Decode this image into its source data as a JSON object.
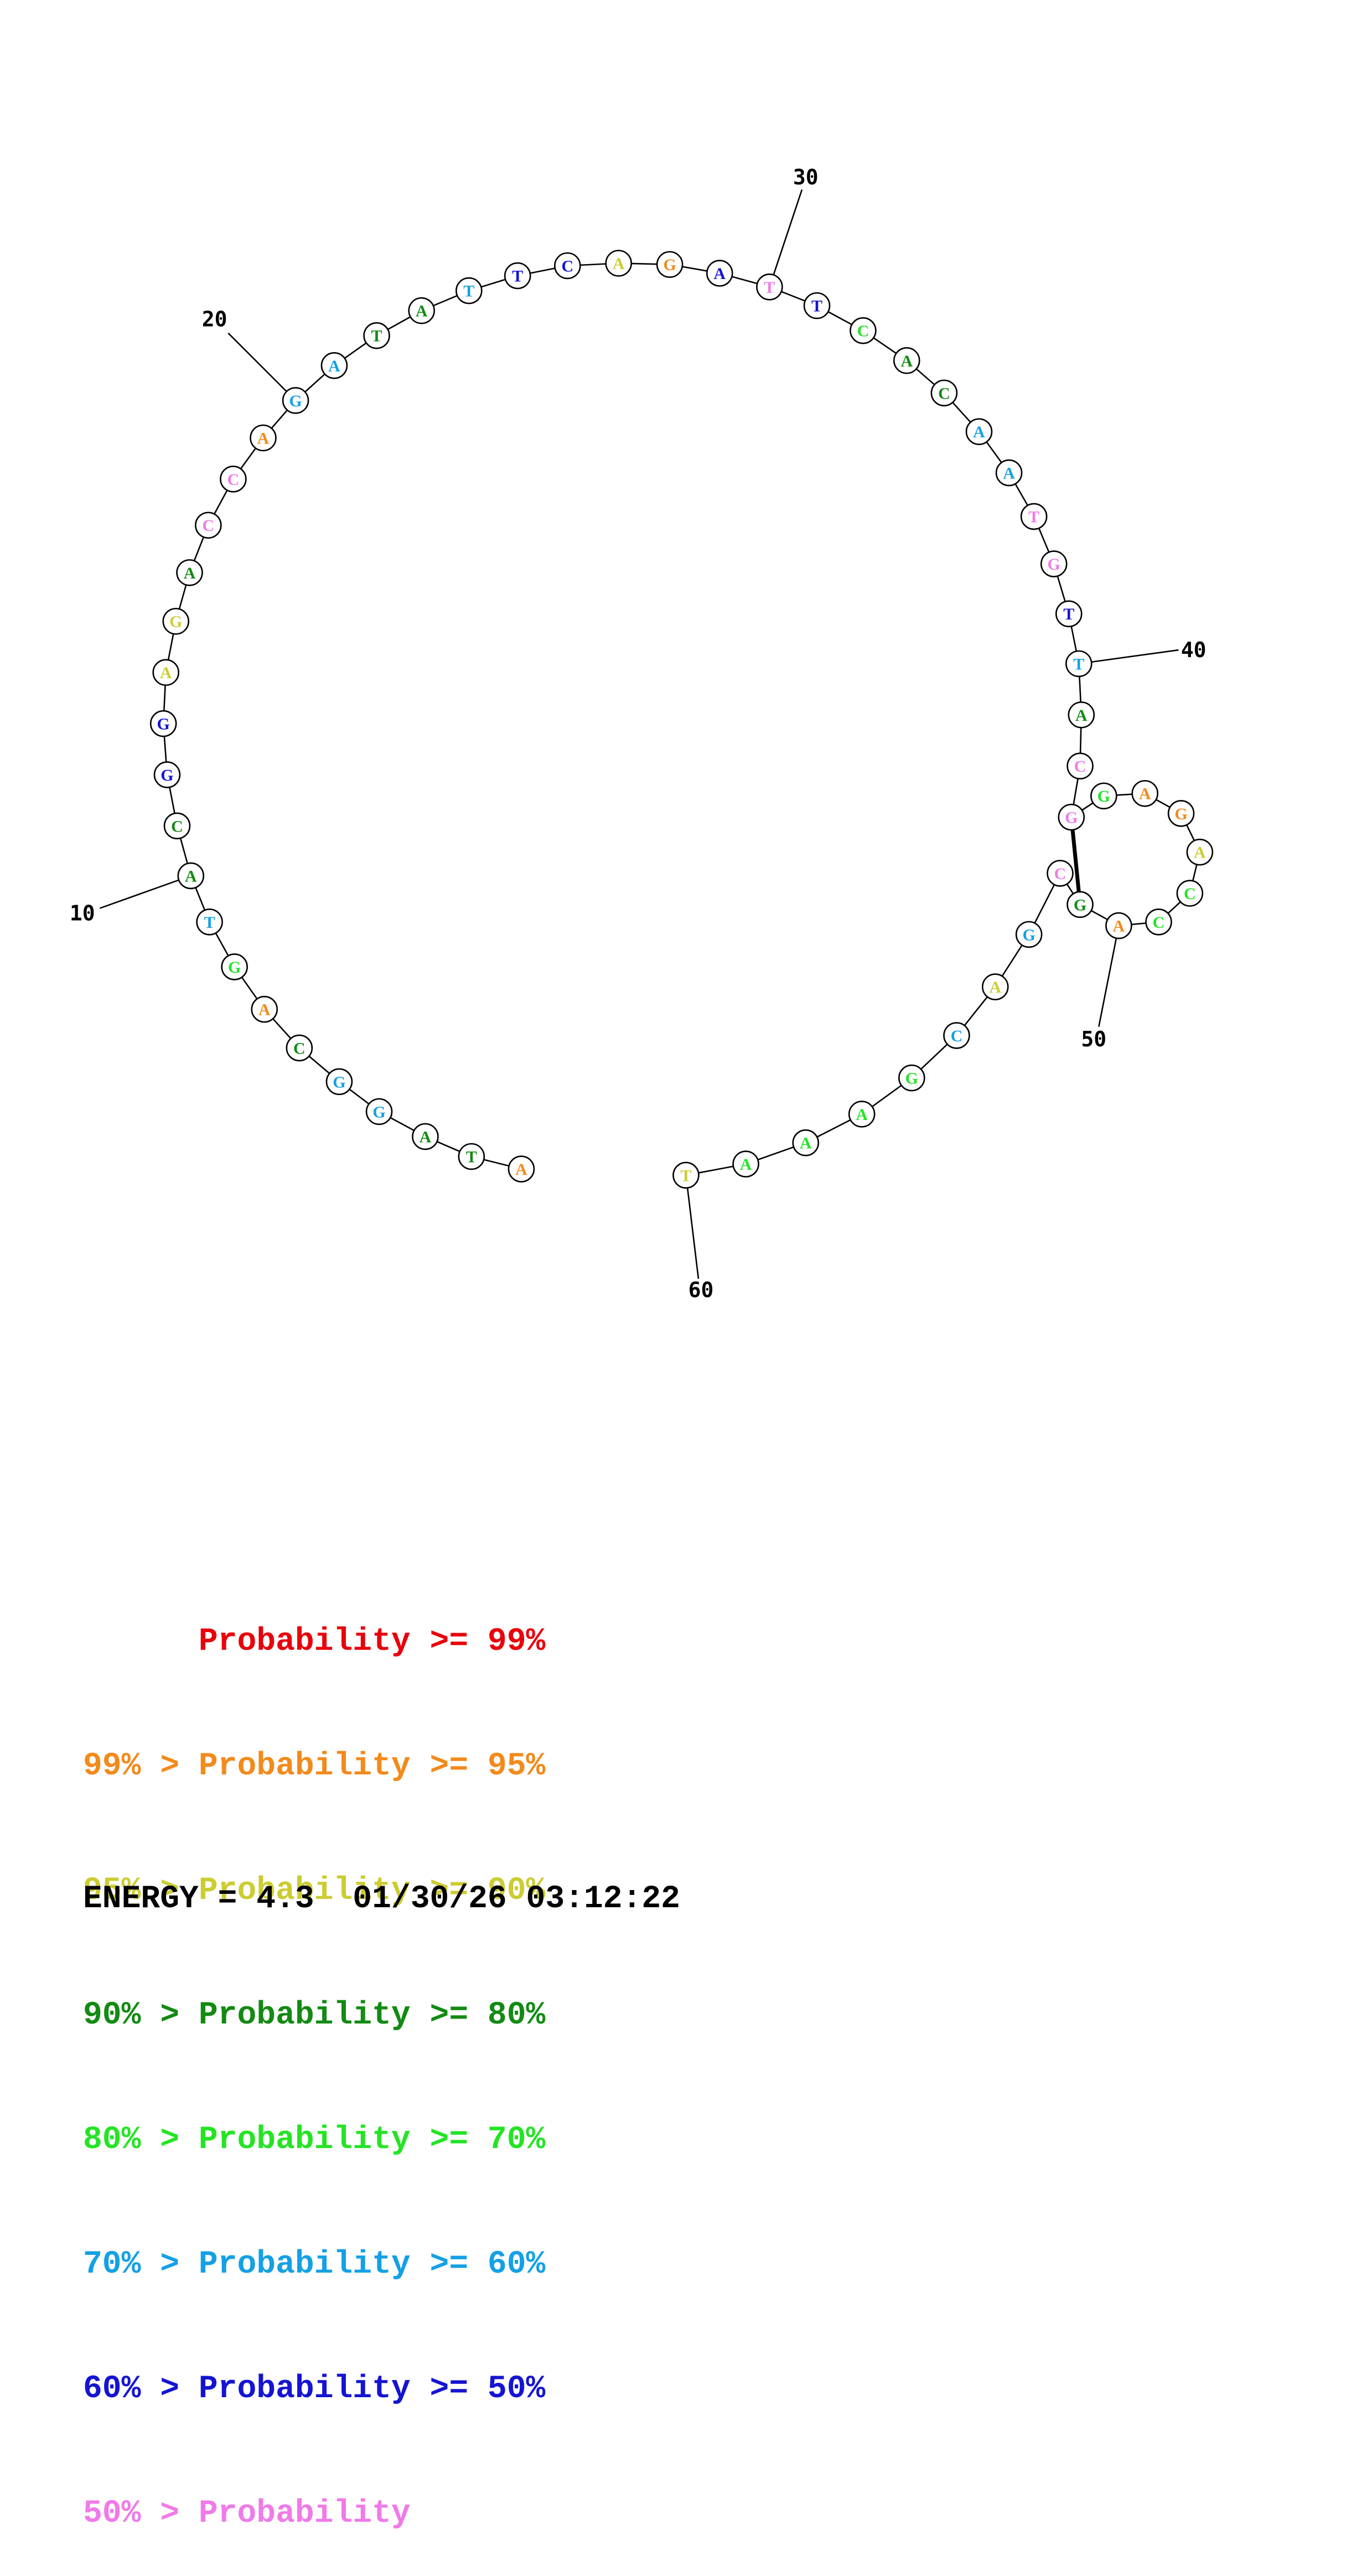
{
  "sequence": [
    "A",
    "T",
    "A",
    "G",
    "G",
    "C",
    "A",
    "G",
    "T",
    "A",
    "C",
    "G",
    "G",
    "A",
    "G",
    "A",
    "C",
    "C",
    "A",
    "G",
    "A",
    "T",
    "A",
    "T",
    "T",
    "C",
    "A",
    "G",
    "A",
    "T",
    "T",
    "C",
    "A",
    "C",
    "A",
    "A",
    "T",
    "G",
    "T",
    "T",
    "A",
    "C",
    "G",
    "G",
    "A",
    "G",
    "A",
    "C",
    "C",
    "A",
    "G",
    "C",
    "G",
    "A",
    "C",
    "G",
    "A",
    "A",
    "A",
    "T"
  ],
  "probability_class": [
    "orange",
    "green",
    "green",
    "sky",
    "sky",
    "green",
    "orange",
    "lime",
    "sky",
    "green",
    "green",
    "blue",
    "blue",
    "yellow",
    "yellow",
    "green",
    "pink",
    "pink",
    "orange",
    "sky",
    "sky",
    "green",
    "green",
    "sky",
    "blue",
    "blue",
    "yellow",
    "orange",
    "blue",
    "pink",
    "blue",
    "lime",
    "green",
    "green",
    "sky",
    "sky",
    "pink",
    "pink",
    "blue",
    "sky",
    "green",
    "pink",
    "pink",
    "lime",
    "orange",
    "orange",
    "yellow",
    "lime",
    "lime",
    "orange",
    "green",
    "pink",
    "sky",
    "yellow",
    "sky",
    "lime",
    "lime",
    "lime",
    "lime",
    "yellow"
  ],
  "colors": {
    "red": "#e8000b",
    "orange": "#f28a1c",
    "yellow": "#cccc33",
    "green": "#138a13",
    "lime": "#24e424",
    "sky": "#14a0e6",
    "blue": "#1414d2",
    "pink": "#f07ae8",
    "circle_fill": "#ffffff",
    "outline": "#000000"
  },
  "base_pairs": [
    [
      43,
      51
    ]
  ],
  "position_labels": [
    "10",
    "20",
    "30",
    "40",
    "50",
    "60"
  ],
  "legend": [
    {
      "prefix": "      ",
      "text": "Probability >= 99%",
      "color": "red"
    },
    {
      "prefix": "99% > ",
      "text": "Probability >= 95%",
      "color": "orange"
    },
    {
      "prefix": "95% > ",
      "text": "Probability >= 90%",
      "color": "yellow"
    },
    {
      "prefix": "90% > ",
      "text": "Probability >= 80%",
      "color": "green"
    },
    {
      "prefix": "80% > ",
      "text": "Probability >= 70%",
      "color": "lime"
    },
    {
      "prefix": "70% > ",
      "text": "Probability >= 60%",
      "color": "sky"
    },
    {
      "prefix": "60% > ",
      "text": "Probability >= 50%",
      "color": "blue"
    },
    {
      "prefix": "50% > ",
      "text": "Probability",
      "color": "pink"
    }
  ],
  "footer": {
    "energy": "ENERGY = 4.3  01/30/26 03:12:22"
  }
}
